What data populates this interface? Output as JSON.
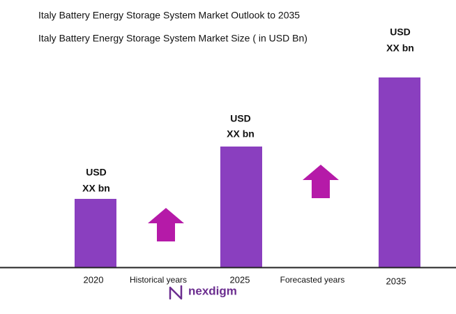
{
  "header": {
    "title": "Italy Battery Energy Storage System Market Outlook to 2035",
    "subtitle": "Italy Battery Energy Storage System Market Size ( in USD Bn)"
  },
  "bars": [
    {
      "label": "2020",
      "value_label": [
        "USD",
        "XX bn"
      ]
    },
    {
      "label": "2025",
      "value_label": [
        "USD",
        "XX bn"
      ]
    },
    {
      "label": "2035",
      "value_label": [
        "USD",
        "XX bn"
      ]
    }
  ],
  "annotations": [
    "Historical years",
    "Forecasted years"
  ],
  "logo": "nexdigm"
}
